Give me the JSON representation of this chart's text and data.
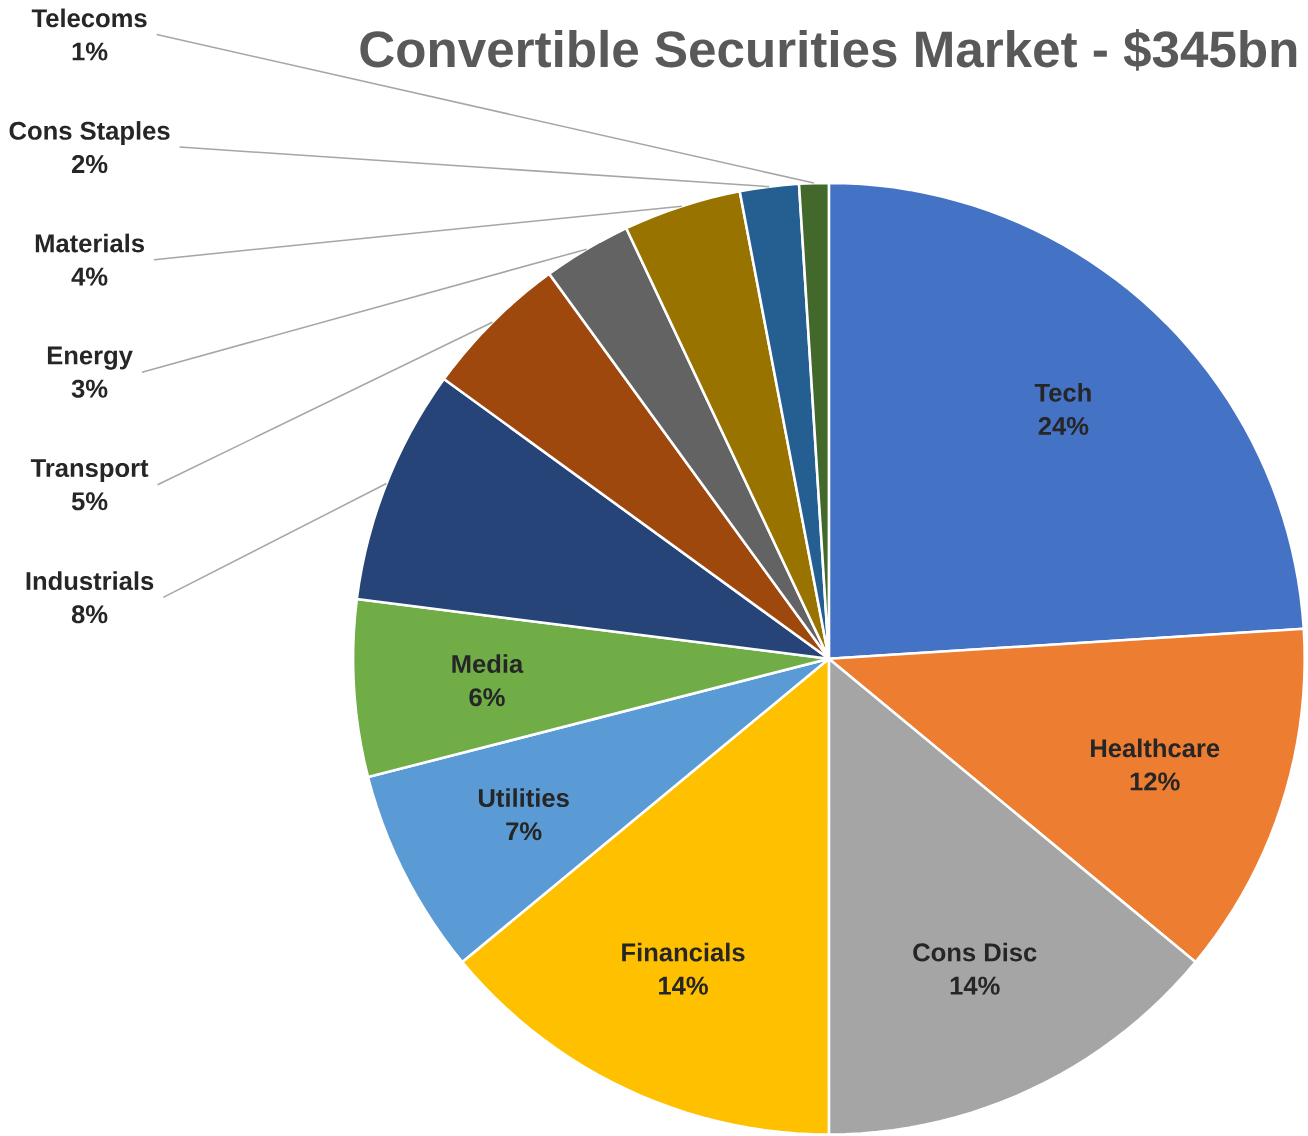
{
  "chart_data": {
    "type": "pie",
    "title": "Convertible Securities Market - $345bn",
    "categories": [
      "Tech",
      "Healthcare",
      "Cons Disc",
      "Financials",
      "Utilities",
      "Media",
      "Industrials",
      "Transport",
      "Energy",
      "Materials",
      "Cons Staples",
      "Telecoms"
    ],
    "values": [
      24,
      12,
      14,
      14,
      7,
      6,
      8,
      5,
      3,
      4,
      2,
      1
    ],
    "value_labels": [
      "24%",
      "12%",
      "14%",
      "14%",
      "7%",
      "6%",
      "8%",
      "5%",
      "3%",
      "4%",
      "2%",
      "1%"
    ],
    "colors": [
      "#4472c4",
      "#ed7d31",
      "#a5a5a5",
      "#ffc000",
      "#5b9bd5",
      "#70ad47",
      "#264478",
      "#9e480e",
      "#636363",
      "#997300",
      "#255e91",
      "#43682b"
    ]
  }
}
